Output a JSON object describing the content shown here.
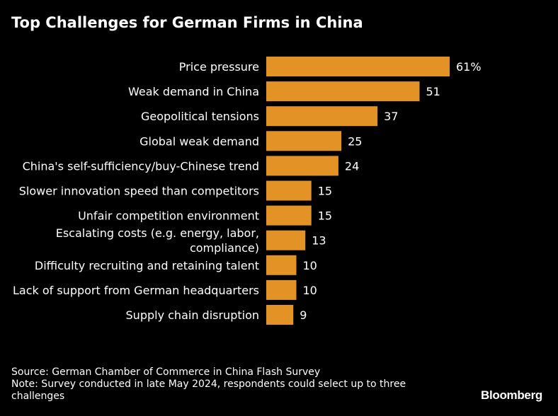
{
  "chart_data": {
    "type": "bar",
    "orientation": "horizontal",
    "title": "Top Challenges for German Firms in China",
    "categories": [
      [
        "Price pressure"
      ],
      [
        "Weak demand in China"
      ],
      [
        "Geopolitical tensions"
      ],
      [
        "Global weak demand"
      ],
      [
        "China's self-sufficiency/buy-Chinese trend"
      ],
      [
        "Slower innovation speed than competitors"
      ],
      [
        "Unfair competition environment"
      ],
      [
        "Escalating costs (e.g. energy, labor,",
        "compliance)"
      ],
      [
        "Difficulty recruiting and retaining talent"
      ],
      [
        "Lack of support from German headquarters"
      ],
      [
        "Supply chain disruption"
      ]
    ],
    "values": [
      61,
      51,
      37,
      25,
      24,
      15,
      15,
      13,
      10,
      10,
      9
    ],
    "value_labels": [
      "61%",
      "51",
      "37",
      "25",
      "24",
      "15",
      "15",
      "13",
      "10",
      "10",
      "9"
    ],
    "xlim": [
      0,
      61
    ],
    "grid": false,
    "xlabel": "",
    "ylabel": ""
  },
  "footer": {
    "source": "Source: German Chamber of Commerce in China Flash Survey",
    "note": "Note: Survey conducted in late May 2024, respondents could select up to three challenges"
  },
  "brand": "Bloomberg",
  "colors": {
    "background": "#000000",
    "bar": "#E39325",
    "text": "#ffffff"
  }
}
